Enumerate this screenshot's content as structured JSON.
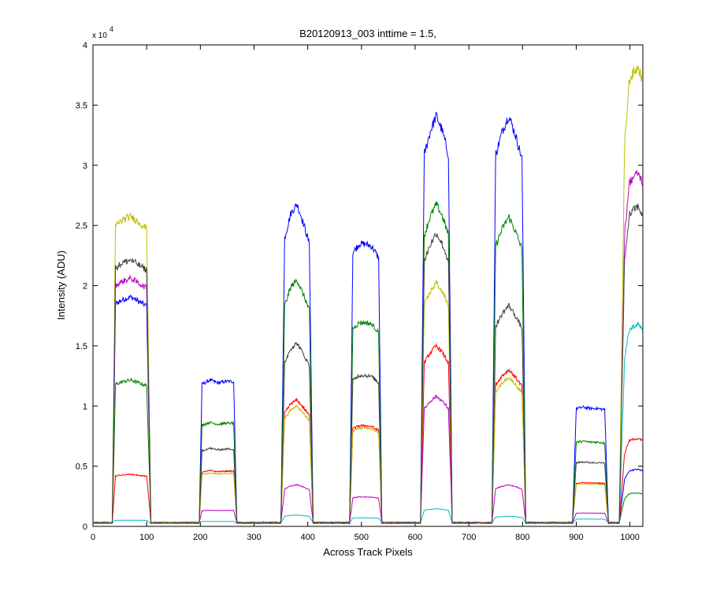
{
  "chart_data": {
    "type": "line",
    "title": "B20120913_003 inttime = 1.5,",
    "xlabel": "Across Track Pixels",
    "ylabel": "Intensity (ADU)",
    "y_multiplier_label": "x 10",
    "y_multiplier_exponent": "4",
    "xlim": [
      0,
      1024
    ],
    "ylim": [
      0,
      40000
    ],
    "x_ticks": [
      0,
      100,
      200,
      300,
      400,
      500,
      600,
      700,
      800,
      900,
      1000
    ],
    "x_tick_labels": [
      "0",
      "100",
      "200",
      "300",
      "400",
      "500",
      "600",
      "700",
      "800",
      "900",
      "1000"
    ],
    "y_ticks": [
      0,
      5000,
      10000,
      15000,
      20000,
      25000,
      30000,
      35000,
      40000
    ],
    "y_tick_labels": [
      "0",
      "0.5",
      "1",
      "1.5",
      "2",
      "2.5",
      "3",
      "3.5",
      "4"
    ],
    "grid": false,
    "baseline": 300,
    "series": [
      {
        "color": "#0000ff",
        "levels": [
          18500,
          11800,
          25500,
          23000,
          32500,
          32500,
          9800,
          4600
        ]
      },
      {
        "color": "#008000",
        "levels": [
          11800,
          8400,
          19500,
          16600,
          25500,
          24500,
          7000,
          2700
        ]
      },
      {
        "color": "#ff0000",
        "levels": [
          4200,
          4500,
          10000,
          8200,
          14300,
          12400,
          3600,
          7100
        ]
      },
      {
        "color": "#00bfbf",
        "levels": [
          500,
          400,
          900,
          700,
          1400,
          800,
          600,
          16300
        ]
      },
      {
        "color": "#bf00bf",
        "levels": [
          20000,
          1300,
          3300,
          2400,
          10300,
          3300,
          1100,
          28500
        ]
      },
      {
        "color": "#bfbf00",
        "levels": [
          25000,
          4300,
          9500,
          8000,
          19300,
          11800,
          3500,
          37000
        ]
      },
      {
        "color": "#404040",
        "levels": [
          21500,
          6300,
          14500,
          12300,
          23200,
          17500,
          5300,
          25800
        ]
      }
    ]
  }
}
